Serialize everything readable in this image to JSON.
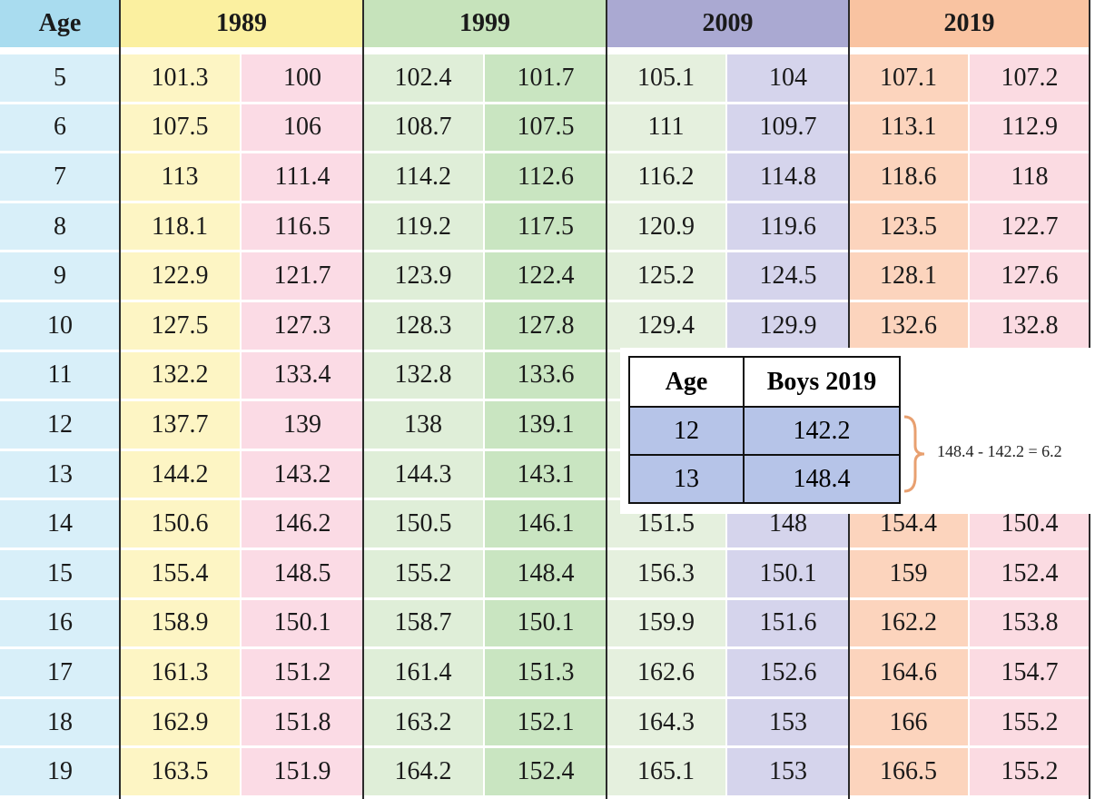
{
  "table": {
    "headers": [
      "Age",
      "1989",
      "1999",
      "2009",
      "2019"
    ],
    "rows": [
      {
        "age": 5,
        "values": [
          101.3,
          100,
          102.4,
          101.7,
          105.1,
          104,
          107.1,
          107.2
        ]
      },
      {
        "age": 6,
        "values": [
          107.5,
          106,
          108.7,
          107.5,
          111,
          109.7,
          113.1,
          112.9
        ]
      },
      {
        "age": 7,
        "values": [
          113,
          111.4,
          114.2,
          112.6,
          116.2,
          114.8,
          118.6,
          118
        ]
      },
      {
        "age": 8,
        "values": [
          118.1,
          116.5,
          119.2,
          117.5,
          120.9,
          119.6,
          123.5,
          122.7
        ]
      },
      {
        "age": 9,
        "values": [
          122.9,
          121.7,
          123.9,
          122.4,
          125.2,
          124.5,
          128.1,
          127.6
        ]
      },
      {
        "age": 10,
        "values": [
          127.5,
          127.3,
          128.3,
          127.8,
          129.4,
          129.9,
          132.6,
          132.8
        ]
      },
      {
        "age": 11,
        "values": [
          132.2,
          133.4,
          132.8,
          133.6
        ]
      },
      {
        "age": 12,
        "values": [
          137.7,
          139,
          138,
          139.1
        ]
      },
      {
        "age": 13,
        "values": [
          144.2,
          143.2,
          144.3,
          143.1
        ]
      },
      {
        "age": 14,
        "values": [
          150.6,
          146.2,
          150.5,
          146.1,
          151.5,
          148,
          154.4,
          150.4
        ]
      },
      {
        "age": 15,
        "values": [
          155.4,
          148.5,
          155.2,
          148.4,
          156.3,
          150.1,
          159,
          152.4
        ]
      },
      {
        "age": 16,
        "values": [
          158.9,
          150.1,
          158.7,
          150.1,
          159.9,
          151.6,
          162.2,
          153.8
        ]
      },
      {
        "age": 17,
        "values": [
          161.3,
          151.2,
          161.4,
          151.3,
          162.6,
          152.6,
          164.6,
          154.7
        ]
      },
      {
        "age": 18,
        "values": [
          162.9,
          151.8,
          163.2,
          152.1,
          164.3,
          153,
          166,
          155.2
        ]
      },
      {
        "age": 19,
        "values": [
          163.5,
          151.9,
          164.2,
          152.4,
          165.1,
          153,
          166.5,
          155.2
        ]
      }
    ]
  },
  "inset": {
    "headers": [
      "Age",
      "Boys 2019"
    ],
    "rows": [
      [
        12,
        142.2
      ],
      [
        13,
        148.4
      ]
    ],
    "note": "148.4 - 142.2 = 6.2"
  }
}
